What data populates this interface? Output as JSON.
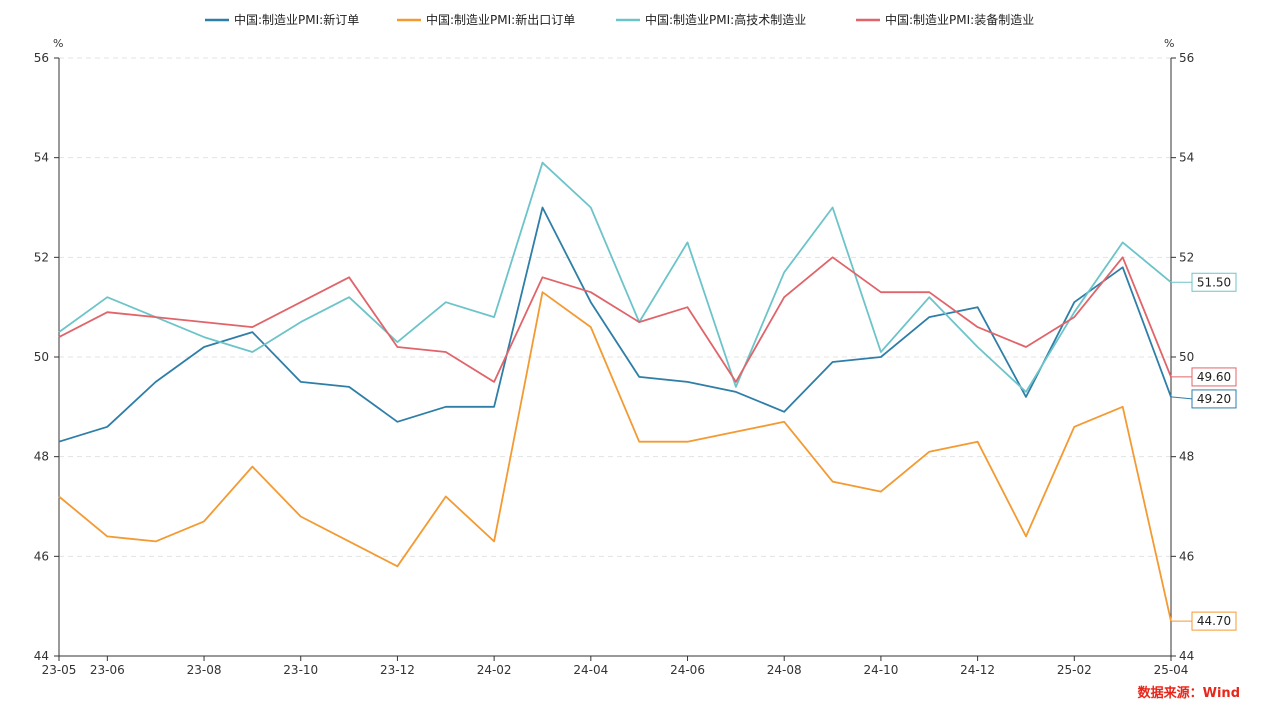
{
  "chart_data": {
    "type": "line",
    "x": [
      "23-05",
      "23-06",
      "23-07",
      "23-08",
      "23-09",
      "23-10",
      "23-11",
      "23-12",
      "24-01",
      "24-02",
      "24-03",
      "24-04",
      "24-05",
      "24-06",
      "24-07",
      "24-08",
      "24-09",
      "24-10",
      "24-11",
      "24-12",
      "25-01",
      "25-02",
      "25-03",
      "25-04"
    ],
    "x_tick_labels": [
      "23-05",
      "23-06",
      "23-08",
      "23-10",
      "23-12",
      "24-02",
      "24-04",
      "24-06",
      "24-08",
      "24-10",
      "24-12",
      "25-02",
      "25-04"
    ],
    "ylim": [
      44,
      56
    ],
    "y_ticks": [
      44,
      46,
      48,
      50,
      52,
      54,
      56
    ],
    "y_unit_left": "%",
    "y_unit_right": "%",
    "grid": true,
    "legend_position": "top",
    "series": [
      {
        "name": "中国:制造业PMI:新订单",
        "color": "#2e7ea8",
        "values": [
          48.3,
          48.6,
          49.5,
          50.2,
          50.5,
          49.5,
          49.4,
          48.7,
          49.0,
          49.0,
          53.0,
          51.1,
          49.6,
          49.5,
          49.3,
          48.9,
          49.9,
          50.0,
          50.8,
          51.0,
          49.2,
          51.1,
          51.8,
          49.2
        ],
        "end_label": "49.20"
      },
      {
        "name": "中国:制造业PMI:新出口订单",
        "color": "#f39a32",
        "values": [
          47.2,
          46.4,
          46.3,
          46.7,
          47.8,
          46.8,
          46.3,
          45.8,
          47.2,
          46.3,
          51.3,
          50.6,
          48.3,
          48.3,
          48.5,
          48.7,
          47.5,
          47.3,
          48.1,
          48.3,
          46.4,
          48.6,
          49.0,
          44.7
        ],
        "end_label": "44.70"
      },
      {
        "name": "中国:制造业PMI:高技术制造业",
        "color": "#6cc4c9",
        "values": [
          50.5,
          51.2,
          50.8,
          50.4,
          50.1,
          50.7,
          51.2,
          50.3,
          51.1,
          50.8,
          53.9,
          53.0,
          50.7,
          52.3,
          49.4,
          51.7,
          53.0,
          50.1,
          51.2,
          50.2,
          49.3,
          50.9,
          52.3,
          51.5
        ],
        "end_label": "51.50"
      },
      {
        "name": "中国:制造业PMI:装备制造业",
        "color": "#e0646a",
        "values": [
          50.4,
          50.9,
          50.8,
          50.7,
          50.6,
          51.1,
          51.6,
          50.2,
          50.1,
          49.5,
          51.6,
          51.3,
          50.7,
          51.0,
          49.5,
          51.2,
          52.0,
          51.3,
          51.3,
          50.6,
          50.2,
          50.8,
          52.0,
          49.6
        ],
        "end_label": "49.60"
      }
    ],
    "source": "数据来源：Wind"
  }
}
